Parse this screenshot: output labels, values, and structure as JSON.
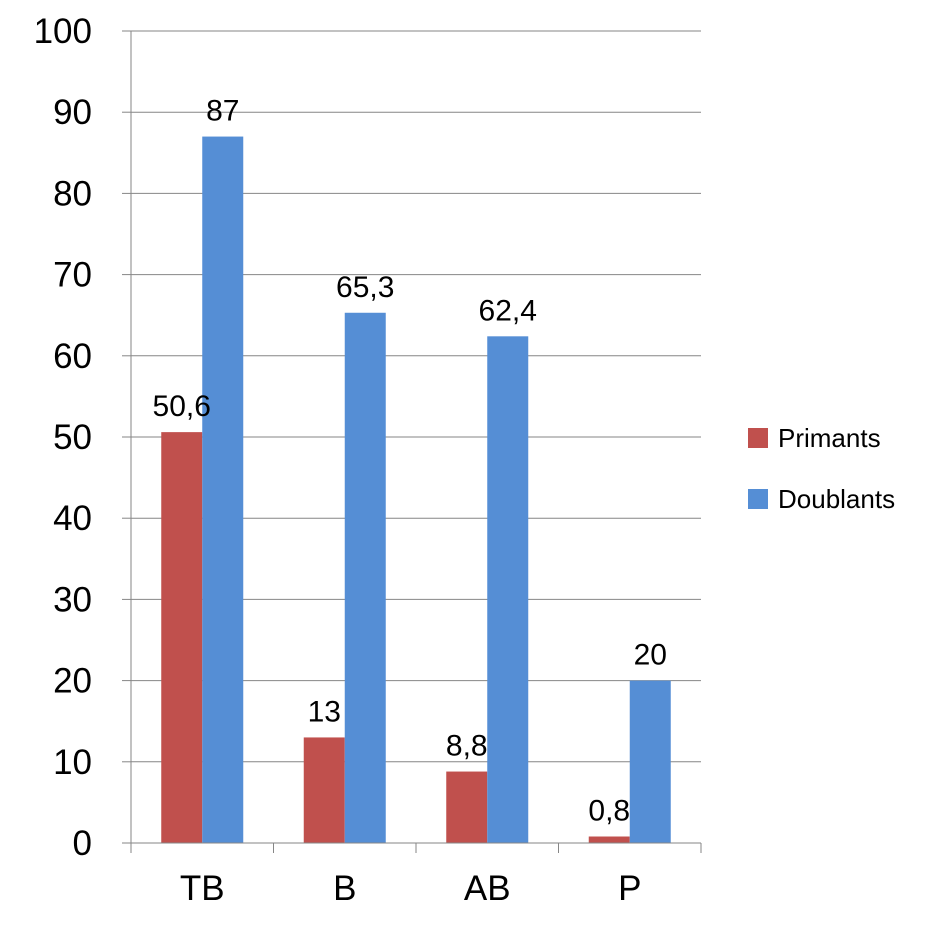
{
  "chart_data": {
    "type": "bar",
    "categories": [
      "TB",
      "B",
      "AB",
      "P"
    ],
    "series": [
      {
        "name": "Primants",
        "values": [
          50.6,
          13,
          8.8,
          0.8
        ],
        "labels": [
          "50,6",
          "13",
          "8,8",
          "0,8"
        ],
        "color": "#C0504D"
      },
      {
        "name": "Doublants",
        "values": [
          87,
          65.3,
          62.4,
          20
        ],
        "labels": [
          "87",
          "65,3",
          "62,4",
          "20"
        ],
        "color": "#558ED5"
      }
    ],
    "ylim": [
      0,
      100
    ],
    "yticks": [
      "0",
      "10",
      "20",
      "30",
      "40",
      "50",
      "60",
      "70",
      "80",
      "90",
      "100"
    ],
    "grid": true,
    "gridline_color": "#868686",
    "legend_position": "right"
  }
}
